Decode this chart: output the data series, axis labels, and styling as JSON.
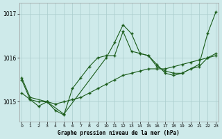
{
  "title": "Graphe pression niveau de la mer (hPa)",
  "bg_color": "#ceeaea",
  "grid_color": "#aacccc",
  "line_color": "#1a5c1a",
  "x_ticks": [
    0,
    1,
    2,
    3,
    4,
    5,
    6,
    7,
    8,
    9,
    10,
    11,
    12,
    13,
    14,
    15,
    16,
    17,
    18,
    19,
    20,
    21,
    22,
    23
  ],
  "y_ticks": [
    1015,
    1016,
    1017
  ],
  "ylim": [
    1014.55,
    1017.25
  ],
  "xlim": [
    -0.3,
    23.3
  ],
  "series1": {
    "x": [
      0,
      1,
      2,
      3,
      4,
      5,
      6,
      7,
      8,
      9,
      10,
      11,
      12,
      13,
      14,
      15,
      16,
      17,
      18,
      19,
      20,
      21,
      22,
      23
    ],
    "y": [
      1015.2,
      1015.05,
      1015.0,
      1015.0,
      1014.95,
      1015.0,
      1015.05,
      1015.1,
      1015.2,
      1015.3,
      1015.4,
      1015.5,
      1015.6,
      1015.65,
      1015.7,
      1015.75,
      1015.75,
      1015.75,
      1015.8,
      1015.85,
      1015.9,
      1015.95,
      1016.0,
      1016.05
    ]
  },
  "series2": {
    "x": [
      0,
      1,
      2,
      3,
      4,
      5,
      6,
      7,
      8,
      9,
      10,
      11,
      12,
      13,
      14,
      15,
      16,
      17,
      18,
      19,
      20,
      21,
      22,
      23
    ],
    "y": [
      1015.5,
      1015.05,
      1014.9,
      1015.0,
      1014.8,
      1014.7,
      1015.3,
      1015.55,
      1015.8,
      1016.0,
      1016.05,
      1016.05,
      1016.6,
      1016.15,
      1016.1,
      1016.05,
      1015.8,
      1015.7,
      1015.65,
      1015.65,
      1015.75,
      1015.8,
      1016.0,
      1016.1
    ]
  },
  "series3": {
    "x": [
      0,
      1,
      3,
      5,
      10,
      11,
      12,
      13,
      14,
      15,
      16,
      17,
      18,
      19,
      21,
      22,
      23
    ],
    "y": [
      1015.55,
      1015.1,
      1015.0,
      1014.72,
      1016.0,
      1016.35,
      1016.75,
      1016.55,
      1016.1,
      1016.05,
      1015.85,
      1015.65,
      1015.6,
      1015.65,
      1015.85,
      1016.55,
      1017.05
    ]
  }
}
